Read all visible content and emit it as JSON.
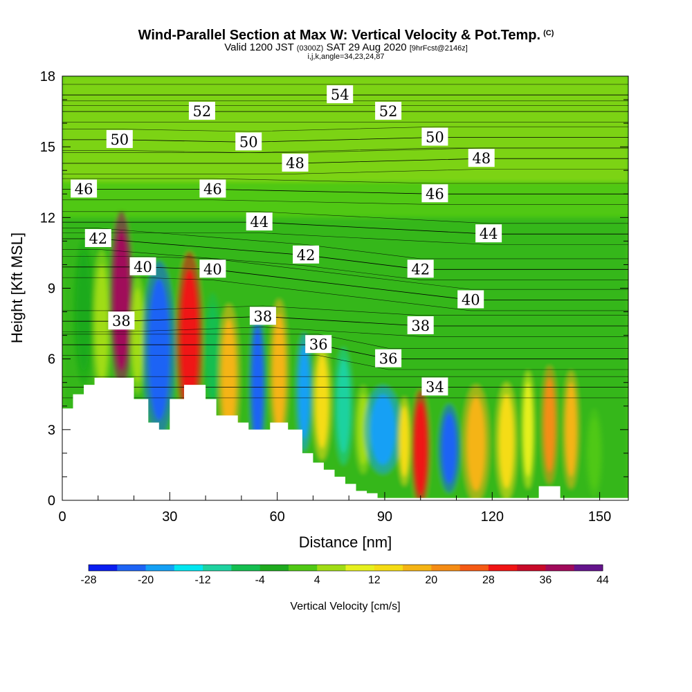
{
  "title": {
    "main": "Wind-Parallel Section at Max W: Vertical Velocity & Pot.Temp.",
    "mark": "(C)",
    "valid_a": "Valid 1200 JST",
    "valid_b": "(0300Z)",
    "valid_c": "SAT 29 Aug 2020",
    "valid_d": "[9hrFcst@2146z]",
    "grid": "i,j,k,angle=34,23,24,87"
  },
  "chart_data": {
    "type": "heatmap",
    "xlabel": "Distance [nm]",
    "ylabel": "Height [Kft MSL]",
    "xlim": [
      0,
      158
    ],
    "ylim": [
      0,
      18
    ],
    "x_ticks": [
      "0",
      "30",
      "60",
      "90",
      "120",
      "150"
    ],
    "y_ticks": [
      "0",
      "3",
      "6",
      "9",
      "12",
      "15",
      "18"
    ],
    "colorbar": {
      "title": "Vertical Velocity [cm/s]",
      "tick_labels": [
        "-28",
        "-20",
        "-12",
        "-4",
        "4",
        "12",
        "20",
        "28",
        "36",
        "44"
      ],
      "bins": [
        -28,
        -24,
        -20,
        -16,
        -12,
        -8,
        -4,
        0,
        4,
        8,
        12,
        16,
        20,
        24,
        28,
        32,
        36,
        40,
        44
      ],
      "colors": [
        "#0a1ef0",
        "#1e64f5",
        "#14a0f5",
        "#00e6f0",
        "#1ed2a0",
        "#14be50",
        "#1eaa1e",
        "#50c814",
        "#a0dc14",
        "#e6f01e",
        "#f5dc14",
        "#f5b414",
        "#f58c14",
        "#f55a14",
        "#f01414",
        "#c80a28",
        "#a00a5a",
        "#64148c"
      ]
    },
    "background_category": "0 to 4",
    "vertical_velocity_cells": [
      {
        "x": 6,
        "y": 8.0,
        "w": 4,
        "h": 5,
        "cat": "-4 to 0"
      },
      {
        "x": 11,
        "y": 7.5,
        "w": 3.5,
        "h": 5,
        "cat": "4 to 8"
      },
      {
        "x": 16.5,
        "y": 8.5,
        "w": 4.5,
        "h": 6,
        "cat": "36 to 40"
      },
      {
        "x": 21,
        "y": 7.0,
        "w": 3,
        "h": 4,
        "cat": "4 to 8"
      },
      {
        "x": 27,
        "y": 6.4,
        "w": 6,
        "h": 6,
        "cat": "-24 to -20"
      },
      {
        "x": 35.5,
        "y": 6.8,
        "w": 5,
        "h": 6,
        "cat": "28 to 32"
      },
      {
        "x": 42,
        "y": 6.3,
        "w": 3.5,
        "h": 4,
        "cat": "-8 to -4"
      },
      {
        "x": 46.5,
        "y": 5.2,
        "w": 4,
        "h": 5,
        "cat": "16 to 20"
      },
      {
        "x": 54.5,
        "y": 4.9,
        "w": 3,
        "h": 5,
        "cat": "-24 to -20"
      },
      {
        "x": 60.5,
        "y": 5.4,
        "w": 3.5,
        "h": 5,
        "cat": "16 to 20"
      },
      {
        "x": 67.5,
        "y": 4.6,
        "w": 3,
        "h": 4,
        "cat": "-20 to -16"
      },
      {
        "x": 72.5,
        "y": 4.2,
        "w": 3.5,
        "h": 4,
        "cat": "12 to 16"
      },
      {
        "x": 78.5,
        "y": 4.0,
        "w": 3.5,
        "h": 4,
        "cat": "-12 to -8"
      },
      {
        "x": 84,
        "y": 3.0,
        "w": 3,
        "h": 3,
        "cat": "4 to 8"
      },
      {
        "x": 89.5,
        "y": 3.0,
        "w": 7,
        "h": 3,
        "cat": "-20 to -16"
      },
      {
        "x": 95.5,
        "y": 2.5,
        "w": 2.5,
        "h": 3,
        "cat": "12 to 16"
      },
      {
        "x": 100,
        "y": 2.2,
        "w": 3.5,
        "h": 4,
        "cat": "28 to 32"
      },
      {
        "x": 108,
        "y": 2.2,
        "w": 4,
        "h": 3,
        "cat": "-24 to -20"
      },
      {
        "x": 115.5,
        "y": 2.4,
        "w": 5,
        "h": 4,
        "cat": "16 to 20"
      },
      {
        "x": 124,
        "y": 2.5,
        "w": 4,
        "h": 4,
        "cat": "12 to 16"
      },
      {
        "x": 130,
        "y": 3.0,
        "w": 2.5,
        "h": 4,
        "cat": "8 to 12"
      },
      {
        "x": 136,
        "y": 3.2,
        "w": 3,
        "h": 4,
        "cat": "20 to 24"
      },
      {
        "x": 142,
        "y": 3.0,
        "w": 3,
        "h": 4,
        "cat": "16 to 20"
      },
      {
        "x": 148.5,
        "y": 2.0,
        "w": 3,
        "h": 3,
        "cat": "0 to 4"
      }
    ],
    "terrain_profile": [
      [
        0,
        3.9
      ],
      [
        3,
        3.9
      ],
      [
        3,
        4.5
      ],
      [
        6,
        4.5
      ],
      [
        6,
        4.9
      ],
      [
        9,
        4.9
      ],
      [
        9,
        5.2
      ],
      [
        20,
        5.2
      ],
      [
        20,
        4.3
      ],
      [
        24,
        4.3
      ],
      [
        24,
        3.3
      ],
      [
        27,
        3.3
      ],
      [
        27,
        3.0
      ],
      [
        30,
        3.0
      ],
      [
        30,
        4.3
      ],
      [
        34,
        4.3
      ],
      [
        34,
        4.9
      ],
      [
        40,
        4.9
      ],
      [
        40,
        4.3
      ],
      [
        43,
        4.3
      ],
      [
        43,
        3.6
      ],
      [
        49,
        3.6
      ],
      [
        49,
        3.3
      ],
      [
        52,
        3.3
      ],
      [
        52,
        3.0
      ],
      [
        58,
        3.0
      ],
      [
        58,
        3.3
      ],
      [
        63,
        3.3
      ],
      [
        63,
        3.0
      ],
      [
        67,
        3.0
      ],
      [
        67,
        2.0
      ],
      [
        70,
        2.0
      ],
      [
        70,
        1.6
      ],
      [
        73,
        1.6
      ],
      [
        73,
        1.3
      ],
      [
        76,
        1.3
      ],
      [
        76,
        1.0
      ],
      [
        79,
        1.0
      ],
      [
        79,
        0.7
      ],
      [
        82,
        0.7
      ],
      [
        82,
        0.4
      ],
      [
        85,
        0.4
      ],
      [
        85,
        0.3
      ],
      [
        88,
        0.3
      ],
      [
        88,
        0.1
      ],
      [
        133,
        0.1
      ],
      [
        133,
        0.6
      ],
      [
        139,
        0.6
      ],
      [
        139,
        0.1
      ],
      [
        158,
        0.1
      ]
    ],
    "potential_temperature_labels": [
      {
        "text": "54",
        "x": 77.5,
        "y": 17.2
      },
      {
        "text": "52",
        "x": 39,
        "y": 16.5
      },
      {
        "text": "52",
        "x": 91,
        "y": 16.5
      },
      {
        "text": "50",
        "x": 16,
        "y": 15.3
      },
      {
        "text": "50",
        "x": 52,
        "y": 15.2
      },
      {
        "text": "50",
        "x": 104,
        "y": 15.4
      },
      {
        "text": "48",
        "x": 65,
        "y": 14.3
      },
      {
        "text": "48",
        "x": 117,
        "y": 14.5
      },
      {
        "text": "46",
        "x": 6,
        "y": 13.2
      },
      {
        "text": "46",
        "x": 42,
        "y": 13.2
      },
      {
        "text": "46",
        "x": 104,
        "y": 13.0
      },
      {
        "text": "44",
        "x": 55,
        "y": 11.8
      },
      {
        "text": "44",
        "x": 119,
        "y": 11.3
      },
      {
        "text": "42",
        "x": 10,
        "y": 11.1
      },
      {
        "text": "42",
        "x": 68,
        "y": 10.4
      },
      {
        "text": "42",
        "x": 100,
        "y": 9.8
      },
      {
        "text": "40",
        "x": 22.5,
        "y": 9.9
      },
      {
        "text": "40",
        "x": 42,
        "y": 9.8
      },
      {
        "text": "40",
        "x": 114,
        "y": 8.5
      },
      {
        "text": "38",
        "x": 16.5,
        "y": 7.6
      },
      {
        "text": "38",
        "x": 56,
        "y": 7.8
      },
      {
        "text": "38",
        "x": 100,
        "y": 7.4
      },
      {
        "text": "36",
        "x": 71.5,
        "y": 6.6
      },
      {
        "text": "36",
        "x": 91,
        "y": 6.0
      },
      {
        "text": "34",
        "x": 104,
        "y": 4.8
      }
    ]
  }
}
